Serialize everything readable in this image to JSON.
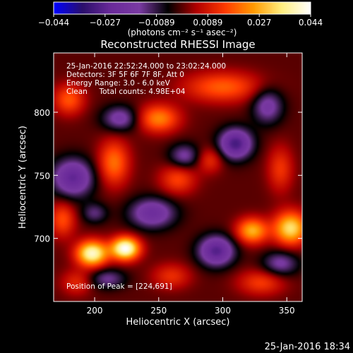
{
  "chart_data": {
    "type": "heatmap",
    "title": "Reconstructed RHESSI Image",
    "xlabel": "Heliocentric X (arcsec)",
    "ylabel": "Heliocentric Y (arcsec)",
    "xlim": [
      168,
      362
    ],
    "ylim": [
      650,
      847
    ],
    "x_ticks": [
      "200",
      "250",
      "300",
      "350"
    ],
    "y_ticks": [
      "700",
      "750",
      "800"
    ],
    "colorbar": {
      "min": -0.044,
      "max": 0.044,
      "ticks": [
        "−0.044",
        "−0.027",
        "−0.0089",
        "0.0089",
        "0.027",
        "0.044"
      ],
      "unit_label": "(photons cm⁻² s⁻¹ asec⁻²)",
      "colormap": [
        "#0000ff",
        "#2b0f6b",
        "#6a2a9a",
        "#7a3aa2",
        "#000000",
        "#b00000",
        "#ff3a00",
        "#ff9a00",
        "#ffee80",
        "#ffffff"
      ]
    },
    "annotations": [
      "25-Jan-2016 22:52:24.000 to 23:02:24.000",
      "Detectors: 3F 5F 6F 7F 8F, Att 0",
      "Energy Range: 3.0 - 6.0 keV",
      "Clean     Total counts: 4.98E+04"
    ],
    "peak_label": "Position of Peak = [224,691]",
    "peak": [
      224,
      691
    ],
    "blobs": [
      {
        "x": 224,
        "y": 692,
        "v": 0.044,
        "rx": 11,
        "ry": 9
      },
      {
        "x": 198,
        "y": 688,
        "v": 0.04,
        "rx": 12,
        "ry": 10
      },
      {
        "x": 353,
        "y": 708,
        "v": 0.033,
        "rx": 13,
        "ry": 13
      },
      {
        "x": 323,
        "y": 706,
        "v": 0.027,
        "rx": 12,
        "ry": 10
      },
      {
        "x": 250,
        "y": 795,
        "v": 0.022,
        "rx": 16,
        "ry": 11
      },
      {
        "x": 215,
        "y": 760,
        "v": 0.02,
        "rx": 12,
        "ry": 18
      },
      {
        "x": 300,
        "y": 820,
        "v": 0.018,
        "rx": 30,
        "ry": 12
      },
      {
        "x": 180,
        "y": 810,
        "v": 0.017,
        "rx": 12,
        "ry": 12
      },
      {
        "x": 265,
        "y": 747,
        "v": 0.015,
        "rx": 14,
        "ry": 12
      },
      {
        "x": 175,
        "y": 715,
        "v": 0.016,
        "rx": 10,
        "ry": 14
      },
      {
        "x": 330,
        "y": 665,
        "v": 0.014,
        "rx": 18,
        "ry": 10
      },
      {
        "x": 345,
        "y": 755,
        "v": 0.013,
        "rx": 10,
        "ry": 18
      },
      {
        "x": 260,
        "y": 670,
        "v": 0.012,
        "rx": 15,
        "ry": 10
      },
      {
        "x": 186,
        "y": 665,
        "v": 0.011,
        "rx": 12,
        "ry": 10
      },
      {
        "x": 290,
        "y": 762,
        "v": 0.012,
        "rx": 10,
        "ry": 10
      },
      {
        "x": 310,
        "y": 775,
        "v": -0.03,
        "rx": 13,
        "ry": 12
      },
      {
        "x": 295,
        "y": 690,
        "v": -0.028,
        "rx": 14,
        "ry": 12
      },
      {
        "x": 183,
        "y": 748,
        "v": -0.026,
        "rx": 16,
        "ry": 15
      },
      {
        "x": 245,
        "y": 720,
        "v": -0.022,
        "rx": 18,
        "ry": 12
      },
      {
        "x": 220,
        "y": 795,
        "v": -0.018,
        "rx": 14,
        "ry": 10
      },
      {
        "x": 335,
        "y": 805,
        "v": -0.018,
        "rx": 12,
        "ry": 14
      },
      {
        "x": 270,
        "y": 765,
        "v": -0.016,
        "rx": 12,
        "ry": 10
      },
      {
        "x": 345,
        "y": 680,
        "v": -0.016,
        "rx": 14,
        "ry": 10
      },
      {
        "x": 210,
        "y": 668,
        "v": -0.014,
        "rx": 14,
        "ry": 8
      },
      {
        "x": 200,
        "y": 720,
        "v": -0.012,
        "rx": 10,
        "ry": 8
      }
    ]
  },
  "footer": {
    "timestamp": "25-Jan-2016 18:34"
  }
}
